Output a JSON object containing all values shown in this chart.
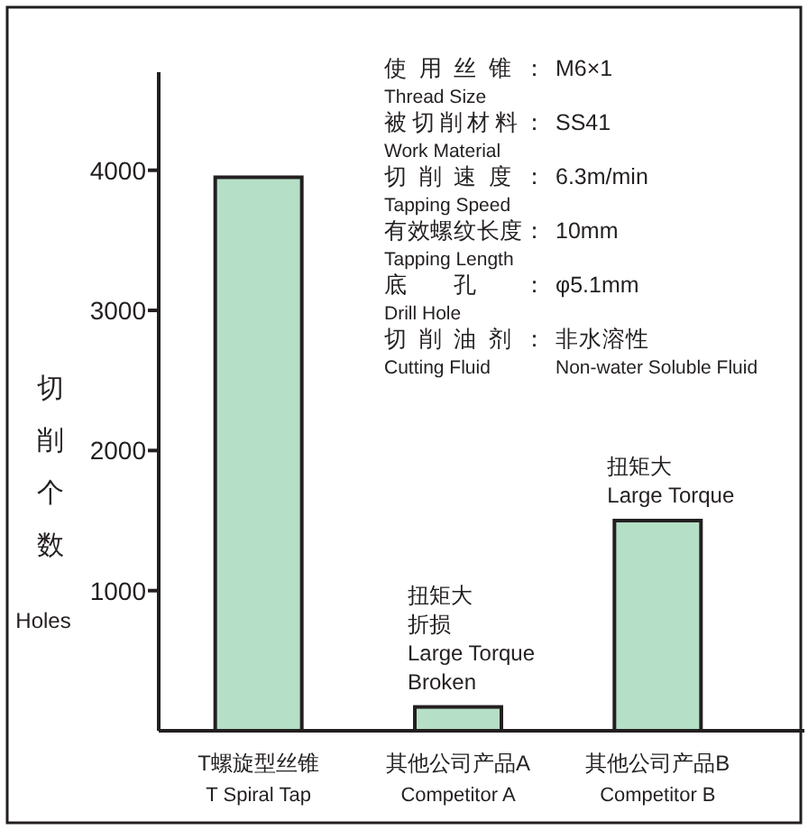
{
  "chart_data": {
    "type": "bar",
    "categories": [
      "T螺旋型丝锥\nT Spiral Tap",
      "其他公司产品A\nCompetitor A",
      "其他公司产品B\nCompetitor B"
    ],
    "values": [
      3950,
      170,
      1500
    ],
    "color": "#b5dfc6",
    "ylabel": "切削个数\nHoles",
    "ylim": [
      0,
      4700
    ],
    "yticks": [
      1000,
      2000,
      3000,
      4000
    ],
    "grid": false,
    "annotations": [
      "使用丝锥：",
      "M6×1",
      "Thread Size",
      "被切削材料：",
      "SS41",
      "Work Material",
      "切削速度：",
      "6.3m/min",
      "Tapping Speed",
      "有效螺纹长度：",
      "10mm",
      "Tapping Length",
      "底孔：",
      "φ5.1mm",
      "Drill Hole",
      "切削油剂：",
      "非水溶性",
      "Cutting Fluid",
      "Non-water Soluble Fluid",
      "扭矩大",
      "折损",
      "Large Torque",
      "Broken",
      "扭矩大",
      "Large Torque"
    ]
  }
}
